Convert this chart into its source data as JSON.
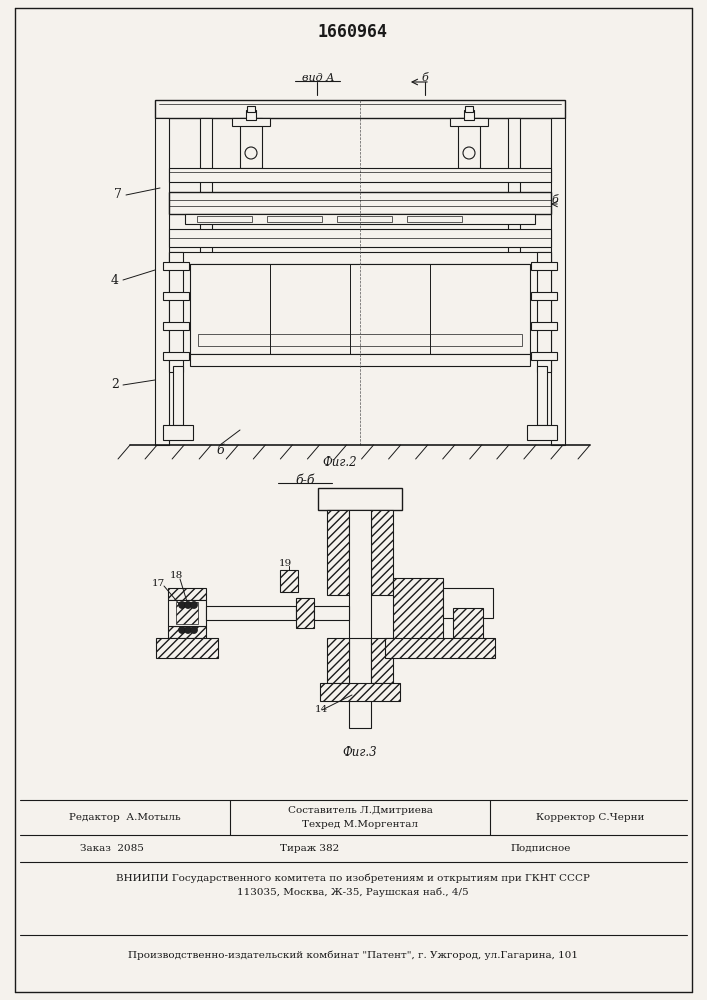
{
  "patent_number": "1660964",
  "fig2_label": "Фиг.2",
  "fig3_label": "Фиг.3",
  "view_a_label": "вид А",
  "section_bb_label": "б-б",
  "bg_color": "#f5f2ed",
  "line_color": "#1a1a1a",
  "editor_line": "Редактор  А.Мотыль",
  "composer_line": "Составитель Л.Дмитриева",
  "techred_line": "Техред М.Моргентал",
  "corrector_line": "Корректор С.Черни",
  "order_line": "Заказ  2085",
  "tirazh_line": "Тираж 382",
  "podpisnoe_line": "Подписное",
  "vniiipi_line": "ВНИИПИ Государственного комитета по изобретениям и открытиям при ГКНТ СССР",
  "address_line": "113035, Москва, Ж-35, Раушская наб., 4/5",
  "publisher_line": "Производственно-издательский комбинат \"Патент\", г. Ужгород, ул.Гагарина, 101"
}
